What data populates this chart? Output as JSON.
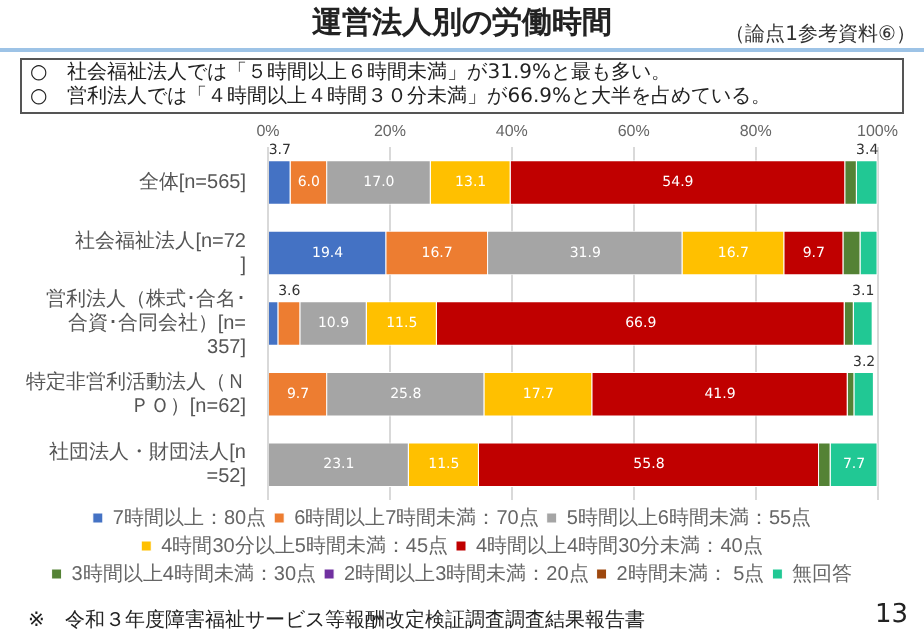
{
  "chart_data": {
    "type": "bar",
    "orientation": "horizontal",
    "stacked": true,
    "title": "運営法人別の労働時間",
    "subtitle": "（論点1参考資料⑥）",
    "categories": [
      "全体[n=565]",
      "社会福祉法人[n=72]",
      "営利法人（株式･合名･合資･合同会社）[n=357]",
      "特定非営利活動法人（ＮＰＯ）[n=62]",
      "社団法人・財団法人[n=52]"
    ],
    "series": [
      {
        "name": "7時間以上：80点",
        "color": "#4472c4",
        "values": [
          3.7,
          19.4,
          1.7,
          null,
          null
        ],
        "value_labels": [
          "3.7",
          "19.4",
          null,
          null,
          null
        ]
      },
      {
        "name": "6時間以上7時間未満：70点",
        "color": "#ed7d31",
        "values": [
          6.0,
          16.7,
          3.6,
          9.7,
          null
        ],
        "value_labels": [
          "6.0",
          "16.7",
          "3.6",
          "9.7",
          null
        ]
      },
      {
        "name": "5時間以上6時間未満：55点",
        "color": "#a5a5a5",
        "values": [
          17.0,
          31.9,
          10.9,
          25.8,
          23.1
        ],
        "value_labels": [
          "17.0",
          "31.9",
          "10.9",
          "25.8",
          "23.1"
        ]
      },
      {
        "name": "4時間30分以上5時間未満：45点",
        "color": "#ffc000",
        "values": [
          13.1,
          16.7,
          11.5,
          17.7,
          11.5
        ],
        "value_labels": [
          "13.1",
          "16.7",
          "11.5",
          "17.7",
          "11.5"
        ]
      },
      {
        "name": "4時間以上4時間30分未満：40点",
        "color": "#c00000",
        "values": [
          54.9,
          9.7,
          66.9,
          41.9,
          55.8
        ],
        "value_labels": [
          "54.9",
          "9.7",
          "66.9",
          "41.9",
          "55.8"
        ]
      },
      {
        "name": "3時間以上4時間未満：30点",
        "color": "#548235",
        "values": [
          1.9,
          2.8,
          1.5,
          1.1,
          1.9
        ],
        "value_labels": [
          null,
          null,
          null,
          null,
          null
        ]
      },
      {
        "name": "2時間以上3時間未満：20点",
        "color": "#7030a0",
        "values": [
          null,
          null,
          null,
          null,
          null
        ],
        "value_labels": [
          null,
          null,
          null,
          null,
          null
        ]
      },
      {
        "name": "2時間未満： 5点",
        "color": "#9e480e",
        "values": [
          null,
          null,
          null,
          null,
          null
        ],
        "value_labels": [
          null,
          null,
          null,
          null,
          null
        ]
      },
      {
        "name": "無回答",
        "color": "#21c894",
        "values": [
          3.4,
          2.8,
          3.1,
          3.2,
          7.7
        ],
        "value_labels": [
          "3.4",
          null,
          "3.1",
          "3.2",
          "7.7"
        ]
      }
    ],
    "xlim": [
      0,
      100
    ],
    "xticks": [
      {
        "value": 0,
        "label": "0%"
      },
      {
        "value": 20,
        "label": "20%"
      },
      {
        "value": 40,
        "label": "40%"
      },
      {
        "value": 60,
        "label": "60%"
      },
      {
        "value": 80,
        "label": "80%"
      },
      {
        "value": 100,
        "label": "100%"
      }
    ],
    "grid": "x",
    "legend": "bottom",
    "annotations": [
      "○　社会福祉法人では「５時間以上６時間未満」が31.9%と最も多い。",
      "○　営利法人では「４時間以上４時間３０分未満」が66.9%と大半を占めている。",
      "※　令和３年度障害福祉サービス等報酬改定検証調査調査結果報告書",
      "13"
    ]
  }
}
